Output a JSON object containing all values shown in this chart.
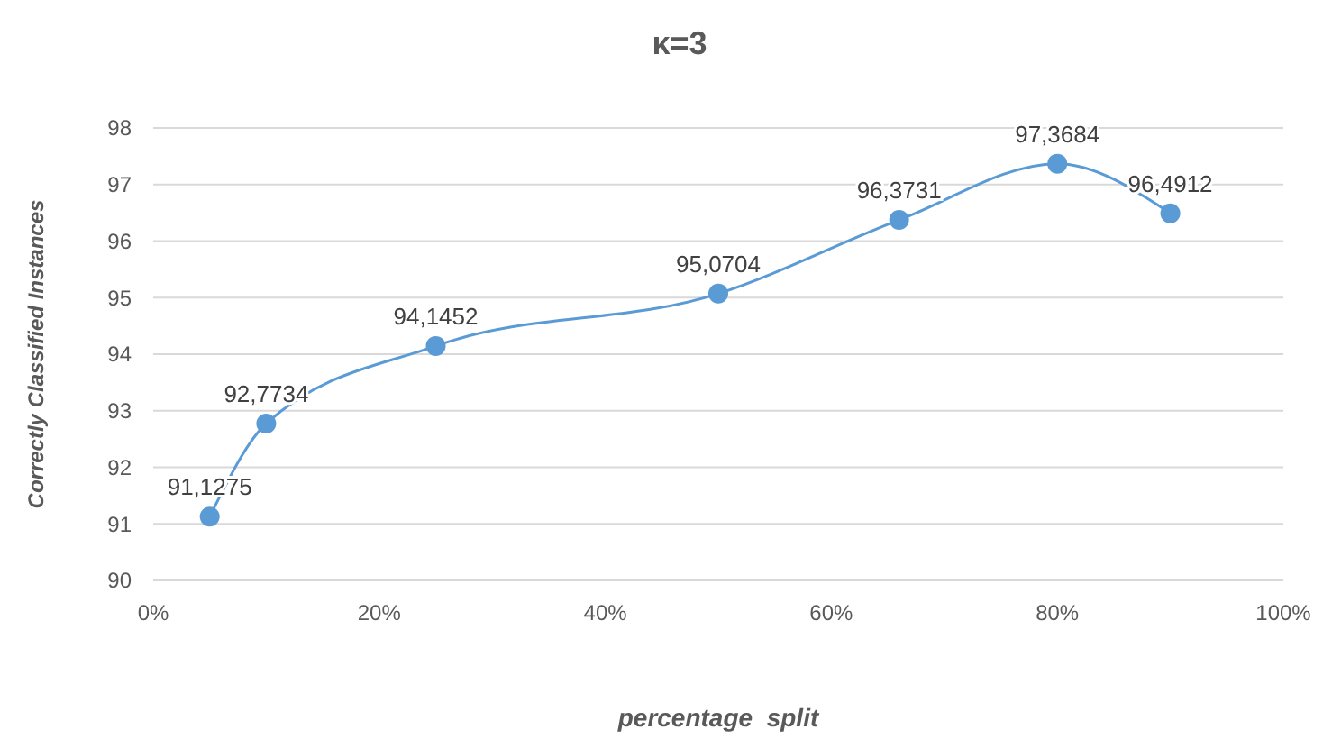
{
  "chart_data": {
    "type": "line",
    "title": "κ=3",
    "xlabel": "percentage  split",
    "ylabel": "Correctly Classified Instances",
    "x": [
      5,
      10,
      25,
      50,
      66,
      80,
      90
    ],
    "series": [
      {
        "color": "#5b9bd5",
        "values": [
          91.1275,
          92.7734,
          94.1452,
          95.0704,
          96.3731,
          97.3684,
          96.4912
        ],
        "value_labels": [
          "91,1275",
          "92,7734",
          "94,1452",
          "95,0704",
          "96,3731",
          "97,3684",
          "96,4912"
        ]
      }
    ],
    "xlim": [
      0,
      100
    ],
    "xticks": [
      {
        "value": 0,
        "label": "0%"
      },
      {
        "value": 20,
        "label": "20%"
      },
      {
        "value": 40,
        "label": "40%"
      },
      {
        "value": 60,
        "label": "60%"
      },
      {
        "value": 80,
        "label": "80%"
      },
      {
        "value": 100,
        "label": "100%"
      }
    ],
    "ylim": [
      90,
      98
    ],
    "yticks": [
      90,
      91,
      92,
      93,
      94,
      95,
      96,
      97,
      98
    ],
    "grid": "y",
    "marker": "circle",
    "line_style": "solid"
  }
}
